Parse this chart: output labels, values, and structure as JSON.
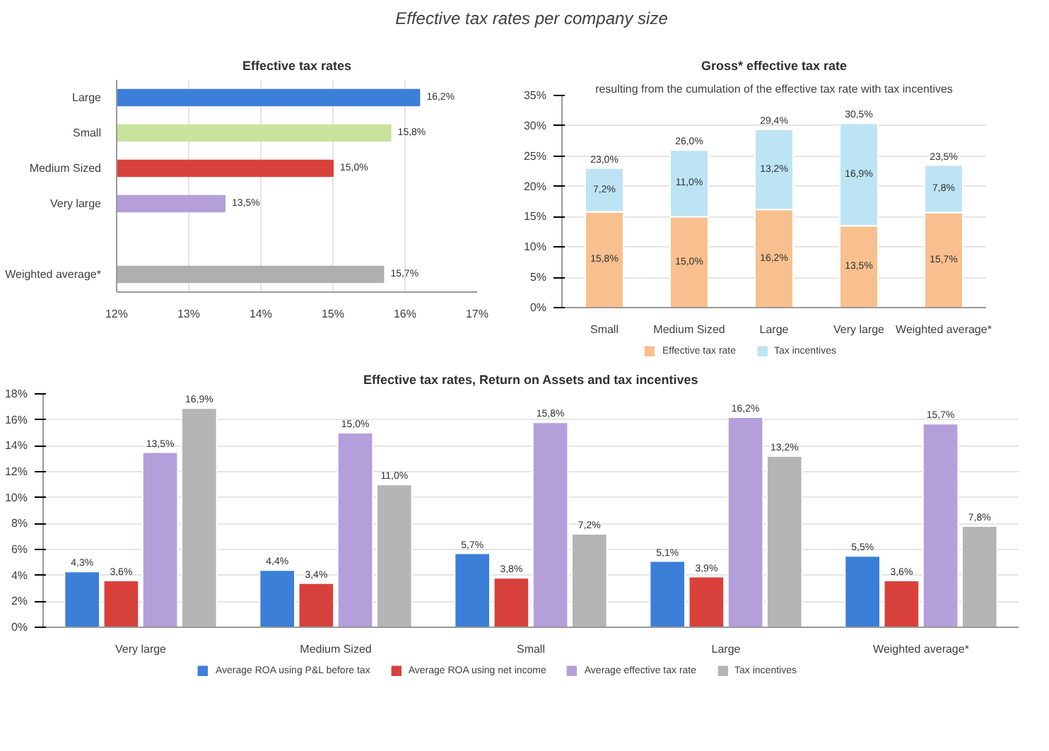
{
  "chart_data": [
    {
      "type": "bar",
      "orientation": "horizontal",
      "title": "Effective tax rates",
      "annotations": [
        "Effective tax rates per company size"
      ],
      "categories": [
        "Large",
        "Small",
        "Medium Sized",
        "Very large",
        null,
        "Weighted average*"
      ],
      "values": [
        16.2,
        15.8,
        15.0,
        13.5,
        null,
        15.7
      ],
      "colors": [
        "#3c7fd8",
        "#c8e49c",
        "#d8413b",
        "#b49fdb",
        null,
        "#afafaf"
      ],
      "value_labels": [
        "16,2%",
        "15,8%",
        "15,0%",
        "13,5%",
        null,
        "15,7%"
      ],
      "xlim": [
        12,
        17
      ],
      "xticks": [
        {
          "value": 12,
          "label": "12%"
        },
        {
          "value": 13,
          "label": "13%"
        },
        {
          "value": 14,
          "label": "14%"
        },
        {
          "value": 15,
          "label": "15%"
        },
        {
          "value": 16,
          "label": "16%"
        },
        {
          "value": 17,
          "label": "17%"
        }
      ],
      "grid": "x"
    },
    {
      "type": "bar",
      "stacked": true,
      "title": "Gross* effective tax rate",
      "subtitle": "resulting from the cumulation of the effective tax rate with tax incentives",
      "categories": [
        "Small",
        "Medium Sized",
        "Large",
        "Very large",
        "Weighted average*"
      ],
      "series": [
        {
          "name": "Effective tax rate",
          "color": "#f9c08f",
          "values": [
            15.8,
            15.0,
            16.2,
            13.5,
            15.7
          ],
          "value_labels": [
            "15,8%",
            "15,0%",
            "16,2%",
            "13,5%",
            "15,7%"
          ]
        },
        {
          "name": "Tax incentives",
          "color": "#bde4f4",
          "values": [
            7.2,
            11.0,
            13.2,
            16.9,
            7.8
          ],
          "value_labels": [
            "7,2%",
            "11,0%",
            "13,2%",
            "16,9%",
            "7,8%"
          ]
        }
      ],
      "totals": [
        "23,0%",
        "26,0%",
        "29,4%",
        "30,5%",
        "23,5%"
      ],
      "ylim": [
        0,
        35
      ],
      "yticks": [
        {
          "value": 0,
          "label": "0%"
        },
        {
          "value": 5,
          "label": "5%"
        },
        {
          "value": 10,
          "label": "10%"
        },
        {
          "value": 15,
          "label": "15%"
        },
        {
          "value": 20,
          "label": "20%"
        },
        {
          "value": 25,
          "label": "25%"
        },
        {
          "value": 30,
          "label": "30%"
        },
        {
          "value": 35,
          "label": "35%"
        }
      ],
      "grid": "y",
      "legend": "bottom"
    },
    {
      "type": "bar",
      "title": "Effective tax rates, Return on Assets and tax incentives",
      "categories": [
        "Very large",
        "Medium Sized",
        "Small",
        "Large",
        "Weighted average*"
      ],
      "series": [
        {
          "name": "Average ROA using P&L before tax",
          "color": "#3c7fd8",
          "values": [
            4.3,
            4.4,
            5.7,
            5.1,
            5.5
          ],
          "value_labels": [
            "4,3%",
            "4,4%",
            "5,7%",
            "5,1%",
            "5,5%"
          ]
        },
        {
          "name": "Average ROA using net income",
          "color": "#d8413b",
          "values": [
            3.6,
            3.4,
            3.8,
            3.9,
            3.6
          ],
          "value_labels": [
            "3,6%",
            "3,4%",
            "3,8%",
            "3,9%",
            "3,6%"
          ]
        },
        {
          "name": "Average effective tax rate",
          "color": "#b49fdb",
          "values": [
            13.5,
            15.0,
            15.8,
            16.2,
            15.7
          ],
          "value_labels": [
            "13,5%",
            "15,0%",
            "15,8%",
            "16,2%",
            "15,7%"
          ]
        },
        {
          "name": "Tax incentives",
          "color": "#b5b5b5",
          "values": [
            16.9,
            11.0,
            7.2,
            13.2,
            7.8
          ],
          "value_labels": [
            "16,9%",
            "11,0%",
            "7,2%",
            "13,2%",
            "7,8%"
          ]
        }
      ],
      "ylim": [
        0,
        18
      ],
      "yticks": [
        {
          "value": 0,
          "label": "0%"
        },
        {
          "value": 2,
          "label": "2%"
        },
        {
          "value": 4,
          "label": "4%"
        },
        {
          "value": 6,
          "label": "6%"
        },
        {
          "value": 8,
          "label": "8%"
        },
        {
          "value": 10,
          "label": "10%"
        },
        {
          "value": 12,
          "label": "12%"
        },
        {
          "value": 14,
          "label": "14%"
        },
        {
          "value": 16,
          "label": "16%"
        },
        {
          "value": 18,
          "label": "18%"
        }
      ],
      "grid": "y",
      "legend": "bottom"
    }
  ]
}
